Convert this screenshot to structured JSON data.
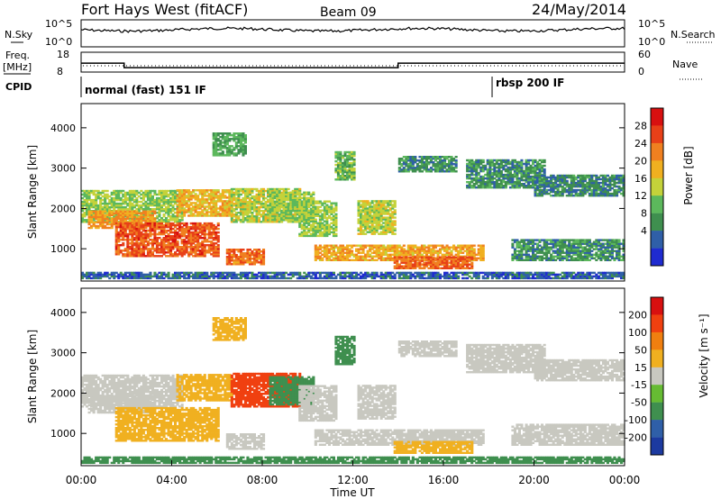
{
  "header": {
    "station": "Fort Hays West (fitACF)",
    "beam": "Beam 09",
    "date": "24/May/2014"
  },
  "noise_panel": {
    "left_label": "N.Sky",
    "right_label": "N.Search",
    "yticks_left": [
      "10^5",
      "10^0"
    ],
    "yticks_right": [
      "10^5",
      "10^0"
    ]
  },
  "freq_panel": {
    "left_label": "Freq.",
    "left_unit": "[MHz]",
    "right_label": "Nave",
    "yticks_left": [
      "18",
      "8"
    ],
    "yticks_right": [
      "60",
      "0"
    ],
    "cpid_label": "CPID"
  },
  "cpid_modes": [
    {
      "start_hour": 0.0,
      "label": "normal (fast) 151 IF"
    },
    {
      "start_hour": 18.15,
      "label": "rbsp 200 IF"
    }
  ],
  "colors": {
    "power_scale": [
      "#1f2bd0",
      "#2f5fa8",
      "#3f8f4f",
      "#5cb85c",
      "#c4d23a",
      "#f0b020",
      "#f08020",
      "#e84018",
      "#d81010"
    ],
    "velocity_scale": [
      "#1c3aa0",
      "#2f5fa8",
      "#3f8f4f",
      "#66bb33",
      "#c8c8c0",
      "#f0b020",
      "#f07f10",
      "#f04010",
      "#d81010"
    ]
  },
  "chart_data": {
    "type": "heatmap",
    "x_unit": "hours UT",
    "xlim": [
      0,
      24
    ],
    "xticks": [
      "00:00",
      "04:00",
      "08:00",
      "12:00",
      "16:00",
      "20:00",
      "00:00"
    ],
    "xlabel": "Time UT",
    "ylabel": "Slant Range [km]",
    "ylim": [
      200,
      4600
    ],
    "yticks": [
      "1000",
      "2000",
      "3000",
      "4000"
    ],
    "freq_steps": [
      {
        "t0": 0.0,
        "t1": 1.9,
        "mhz": 12.5
      },
      {
        "t0": 1.9,
        "t1": 14.0,
        "mhz": 10.2
      },
      {
        "t0": 14.0,
        "t1": 24.0,
        "mhz": 12.5
      }
    ],
    "panels": [
      {
        "name": "power",
        "colorbar_label": "Power [dB]",
        "colorbar_ticks": [
          "4",
          "8",
          "12",
          "16",
          "20",
          "24",
          "28"
        ],
        "color_levels": [
          0,
          4,
          8,
          12,
          16,
          20,
          24,
          28,
          32
        ]
      },
      {
        "name": "velocity",
        "colorbar_label": "Velocity [m s⁻¹]",
        "colorbar_ticks": [
          "200",
          "100",
          "50",
          "15",
          "-15",
          "-50",
          "-100",
          "-200"
        ],
        "color_levels": [
          250,
          200,
          100,
          50,
          15,
          -15,
          -50,
          -100,
          -200,
          -250
        ]
      }
    ],
    "echo_regions": [
      {
        "t0": 0.0,
        "t1": 4.5,
        "r0": 1650,
        "r1": 2450,
        "power": 16,
        "velocity": 0
      },
      {
        "t0": 0.3,
        "t1": 3.3,
        "r0": 1500,
        "r1": 1950,
        "power": 24,
        "velocity": -10
      },
      {
        "t0": 1.5,
        "t1": 6.0,
        "r0": 800,
        "r1": 1650,
        "power": 29,
        "velocity": -40
      },
      {
        "t0": 4.2,
        "t1": 6.6,
        "r0": 1800,
        "r1": 2450,
        "power": 22,
        "velocity": -30
      },
      {
        "t0": 5.8,
        "t1": 7.2,
        "r0": 3300,
        "r1": 3850,
        "power": 12,
        "velocity": -40
      },
      {
        "t0": 6.6,
        "t1": 9.6,
        "r0": 1650,
        "r1": 2500,
        "power": 18,
        "velocity": -180
      },
      {
        "t0": 8.3,
        "t1": 10.2,
        "r0": 1700,
        "r1": 2400,
        "power": 16,
        "velocity": 60
      },
      {
        "t0": 6.4,
        "t1": 8.0,
        "r0": 600,
        "r1": 1000,
        "power": 27,
        "velocity": 0
      },
      {
        "t0": 9.6,
        "t1": 11.2,
        "r0": 1300,
        "r1": 2200,
        "power": 16,
        "velocity": 0
      },
      {
        "t0": 11.2,
        "t1": 12.0,
        "r0": 2700,
        "r1": 3400,
        "power": 14,
        "velocity": 80
      },
      {
        "t0": 12.2,
        "t1": 13.8,
        "r0": 1350,
        "r1": 2200,
        "power": 18,
        "velocity": 10
      },
      {
        "t0": 10.3,
        "t1": 17.8,
        "r0": 700,
        "r1": 1100,
        "power": 23,
        "velocity": 0
      },
      {
        "t0": 13.8,
        "t1": 17.3,
        "r0": 500,
        "r1": 800,
        "power": 28,
        "velocity": -30
      },
      {
        "t0": 14.0,
        "t1": 16.6,
        "r0": 2900,
        "r1": 3300,
        "power": 10,
        "velocity": 0
      },
      {
        "t0": 17.0,
        "t1": 20.5,
        "r0": 2500,
        "r1": 3200,
        "power": 10,
        "velocity": 0
      },
      {
        "t0": 20.0,
        "t1": 24.0,
        "r0": 2300,
        "r1": 2800,
        "power": 9,
        "velocity": 0
      },
      {
        "t0": 19.0,
        "t1": 24.0,
        "r0": 700,
        "r1": 1200,
        "power": 10,
        "velocity": 0
      },
      {
        "t0": 0.0,
        "t1": 24.0,
        "r0": 250,
        "r1": 400,
        "power": 6,
        "velocity": 60
      }
    ]
  }
}
